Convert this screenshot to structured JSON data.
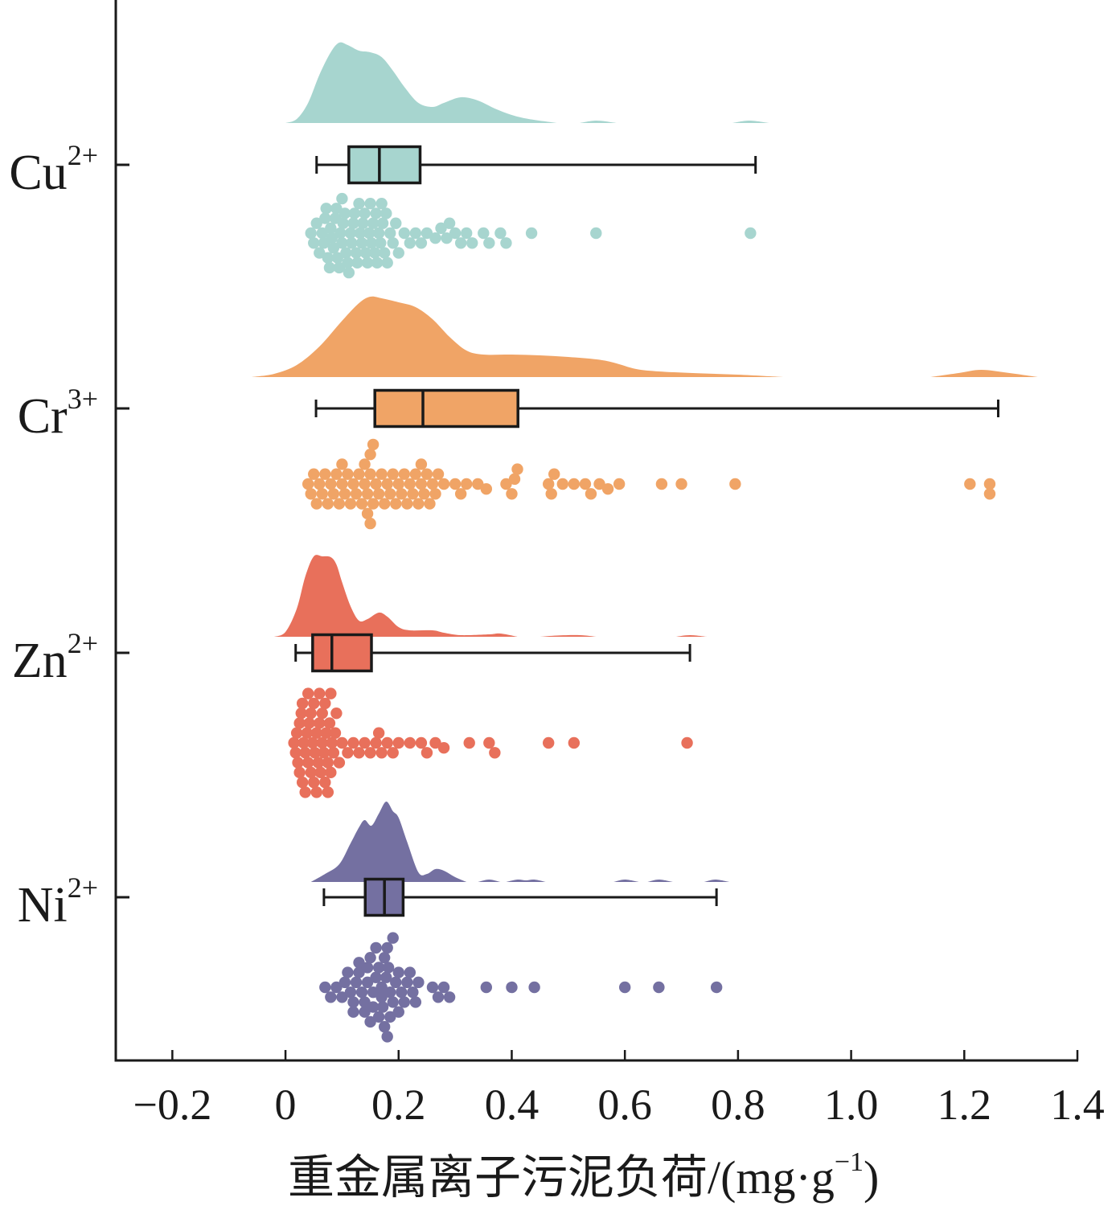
{
  "chart_data": {
    "type": "raincloud",
    "title": "",
    "xlabel": "重金属离子污泥负荷/(mg·g",
    "xlabel_sup": "−1",
    "xlabel_close": ")",
    "ylabel": "",
    "xlim": [
      -0.3,
      1.4
    ],
    "x_ticks": [
      -0.2,
      0,
      0.2,
      0.4,
      0.6,
      0.8,
      1.0,
      1.2,
      1.4
    ],
    "x_tick_labels": [
      "−0.2",
      "0",
      "0.2",
      "0.4",
      "0.6",
      "0.8",
      "1.0",
      "1.2",
      "1.4"
    ],
    "grid": false,
    "legend": "none",
    "series": [
      {
        "name": "Cu2+",
        "label_base": "Cu",
        "label_sup": "2+",
        "color": "#a7d5cf",
        "box": {
          "whisker_low": 0.055,
          "q1": 0.112,
          "median": 0.166,
          "q3": 0.238,
          "whisker_high": 0.831
        },
        "density": [
          [
            0.0,
            0
          ],
          [
            0.02,
            0.05
          ],
          [
            0.04,
            0.25
          ],
          [
            0.06,
            0.6
          ],
          [
            0.08,
            0.88
          ],
          [
            0.095,
            1.0
          ],
          [
            0.11,
            0.97
          ],
          [
            0.13,
            0.9
          ],
          [
            0.15,
            0.88
          ],
          [
            0.17,
            0.82
          ],
          [
            0.19,
            0.65
          ],
          [
            0.21,
            0.45
          ],
          [
            0.235,
            0.25
          ],
          [
            0.26,
            0.2
          ],
          [
            0.28,
            0.25
          ],
          [
            0.31,
            0.32
          ],
          [
            0.34,
            0.28
          ],
          [
            0.37,
            0.18
          ],
          [
            0.4,
            0.1
          ],
          [
            0.43,
            0.05
          ],
          [
            0.48,
            0.0
          ],
          [
            0.52,
            0
          ],
          [
            0.55,
            0.03
          ],
          [
            0.585,
            0
          ],
          [
            0.79,
            0
          ],
          [
            0.82,
            0.03
          ],
          [
            0.855,
            0
          ]
        ],
        "points": [
          0.045,
          0.05,
          0.055,
          0.06,
          0.065,
          0.068,
          0.07,
          0.072,
          0.075,
          0.078,
          0.08,
          0.082,
          0.085,
          0.088,
          0.09,
          0.092,
          0.095,
          0.097,
          0.1,
          0.1,
          0.102,
          0.105,
          0.107,
          0.11,
          0.112,
          0.115,
          0.117,
          0.12,
          0.122,
          0.125,
          0.127,
          0.13,
          0.132,
          0.135,
          0.137,
          0.14,
          0.142,
          0.145,
          0.148,
          0.15,
          0.152,
          0.155,
          0.158,
          0.16,
          0.162,
          0.165,
          0.168,
          0.17,
          0.172,
          0.175,
          0.178,
          0.18,
          0.185,
          0.19,
          0.195,
          0.2,
          0.21,
          0.22,
          0.23,
          0.24,
          0.25,
          0.265,
          0.275,
          0.285,
          0.29,
          0.3,
          0.31,
          0.32,
          0.33,
          0.35,
          0.36,
          0.38,
          0.39,
          0.435,
          0.549,
          0.822
        ]
      },
      {
        "name": "Cr3+",
        "label_base": "Cr",
        "label_sup": "3+",
        "color": "#f0a466",
        "box": {
          "whisker_low": 0.054,
          "q1": 0.158,
          "median": 0.243,
          "q3": 0.411,
          "whisker_high": 1.26
        },
        "density": [
          [
            -0.06,
            0
          ],
          [
            -0.02,
            0.04
          ],
          [
            0.02,
            0.15
          ],
          [
            0.06,
            0.38
          ],
          [
            0.1,
            0.7
          ],
          [
            0.13,
            0.92
          ],
          [
            0.15,
            1.0
          ],
          [
            0.17,
            0.98
          ],
          [
            0.2,
            0.93
          ],
          [
            0.23,
            0.87
          ],
          [
            0.26,
            0.72
          ],
          [
            0.29,
            0.5
          ],
          [
            0.32,
            0.33
          ],
          [
            0.35,
            0.28
          ],
          [
            0.4,
            0.28
          ],
          [
            0.45,
            0.27
          ],
          [
            0.5,
            0.25
          ],
          [
            0.55,
            0.22
          ],
          [
            0.58,
            0.18
          ],
          [
            0.62,
            0.1
          ],
          [
            0.66,
            0.07
          ],
          [
            0.72,
            0.05
          ],
          [
            0.8,
            0.03
          ],
          [
            0.88,
            0
          ],
          [
            1.14,
            0
          ],
          [
            1.19,
            0.05
          ],
          [
            1.23,
            0.09
          ],
          [
            1.28,
            0.05
          ],
          [
            1.33,
            0
          ]
        ],
        "points": [
          0.04,
          0.045,
          0.05,
          0.055,
          0.06,
          0.065,
          0.07,
          0.075,
          0.08,
          0.085,
          0.09,
          0.095,
          0.1,
          0.1,
          0.105,
          0.11,
          0.115,
          0.12,
          0.125,
          0.13,
          0.135,
          0.14,
          0.14,
          0.145,
          0.145,
          0.15,
          0.15,
          0.15,
          0.155,
          0.155,
          0.16,
          0.165,
          0.17,
          0.175,
          0.18,
          0.185,
          0.19,
          0.195,
          0.2,
          0.205,
          0.21,
          0.215,
          0.22,
          0.225,
          0.23,
          0.235,
          0.24,
          0.24,
          0.245,
          0.25,
          0.255,
          0.26,
          0.265,
          0.27,
          0.28,
          0.3,
          0.31,
          0.32,
          0.34,
          0.355,
          0.39,
          0.4,
          0.405,
          0.41,
          0.465,
          0.47,
          0.475,
          0.49,
          0.51,
          0.53,
          0.54,
          0.555,
          0.57,
          0.59,
          0.665,
          0.7,
          0.795,
          1.21,
          1.245,
          1.245
        ]
      },
      {
        "name": "Zn2+",
        "label_base": "Zn",
        "label_sup": "2+",
        "color": "#e8705b",
        "box": {
          "whisker_low": 0.018,
          "q1": 0.048,
          "median": 0.082,
          "q3": 0.152,
          "whisker_high": 0.715
        },
        "density": [
          [
            -0.02,
            0
          ],
          [
            0.0,
            0.06
          ],
          [
            0.02,
            0.35
          ],
          [
            0.035,
            0.75
          ],
          [
            0.05,
            1.0
          ],
          [
            0.065,
            1.0
          ],
          [
            0.08,
            0.99
          ],
          [
            0.09,
            0.9
          ],
          [
            0.1,
            0.68
          ],
          [
            0.115,
            0.38
          ],
          [
            0.13,
            0.2
          ],
          [
            0.145,
            0.22
          ],
          [
            0.165,
            0.3
          ],
          [
            0.18,
            0.25
          ],
          [
            0.2,
            0.12
          ],
          [
            0.22,
            0.08
          ],
          [
            0.26,
            0.08
          ],
          [
            0.28,
            0.05
          ],
          [
            0.31,
            0.02
          ],
          [
            0.36,
            0.03
          ],
          [
            0.38,
            0.04
          ],
          [
            0.41,
            0
          ],
          [
            0.45,
            0
          ],
          [
            0.48,
            0.015
          ],
          [
            0.52,
            0.02
          ],
          [
            0.55,
            0
          ],
          [
            0.69,
            0
          ],
          [
            0.715,
            0.02
          ],
          [
            0.745,
            0
          ]
        ],
        "points": [
          0.015,
          0.018,
          0.02,
          0.022,
          0.025,
          0.025,
          0.028,
          0.03,
          0.03,
          0.032,
          0.035,
          0.035,
          0.038,
          0.04,
          0.04,
          0.042,
          0.045,
          0.045,
          0.048,
          0.05,
          0.05,
          0.052,
          0.055,
          0.055,
          0.058,
          0.06,
          0.06,
          0.062,
          0.065,
          0.065,
          0.068,
          0.07,
          0.07,
          0.072,
          0.075,
          0.075,
          0.078,
          0.08,
          0.08,
          0.082,
          0.085,
          0.088,
          0.09,
          0.095,
          0.1,
          0.11,
          0.12,
          0.13,
          0.14,
          0.15,
          0.16,
          0.165,
          0.17,
          0.18,
          0.19,
          0.2,
          0.22,
          0.24,
          0.25,
          0.265,
          0.28,
          0.325,
          0.36,
          0.37,
          0.465,
          0.51,
          0.71
        ]
      },
      {
        "name": "Ni2+",
        "label_base": "Ni",
        "label_sup": "2+",
        "color": "#7470a1",
        "box": {
          "whisker_low": 0.068,
          "q1": 0.141,
          "median": 0.175,
          "q3": 0.208,
          "whisker_high": 0.762
        },
        "density": [
          [
            0.045,
            0
          ],
          [
            0.07,
            0.1
          ],
          [
            0.095,
            0.22
          ],
          [
            0.115,
            0.48
          ],
          [
            0.13,
            0.68
          ],
          [
            0.14,
            0.77
          ],
          [
            0.152,
            0.7
          ],
          [
            0.165,
            0.85
          ],
          [
            0.178,
            1.0
          ],
          [
            0.19,
            0.88
          ],
          [
            0.2,
            0.8
          ],
          [
            0.215,
            0.5
          ],
          [
            0.235,
            0.12
          ],
          [
            0.25,
            0.1
          ],
          [
            0.265,
            0.16
          ],
          [
            0.28,
            0.14
          ],
          [
            0.3,
            0.06
          ],
          [
            0.32,
            0
          ],
          [
            0.34,
            0
          ],
          [
            0.36,
            0.03
          ],
          [
            0.38,
            0
          ],
          [
            0.39,
            0
          ],
          [
            0.41,
            0.03
          ],
          [
            0.425,
            0.02
          ],
          [
            0.44,
            0.03
          ],
          [
            0.46,
            0
          ],
          [
            0.58,
            0
          ],
          [
            0.6,
            0.03
          ],
          [
            0.625,
            0
          ],
          [
            0.64,
            0
          ],
          [
            0.66,
            0.03
          ],
          [
            0.685,
            0
          ],
          [
            0.74,
            0
          ],
          [
            0.76,
            0.03
          ],
          [
            0.785,
            0
          ]
        ],
        "points": [
          0.07,
          0.08,
          0.09,
          0.1,
          0.105,
          0.11,
          0.115,
          0.12,
          0.12,
          0.125,
          0.13,
          0.13,
          0.135,
          0.14,
          0.14,
          0.145,
          0.145,
          0.15,
          0.15,
          0.155,
          0.155,
          0.16,
          0.16,
          0.165,
          0.165,
          0.17,
          0.17,
          0.172,
          0.175,
          0.175,
          0.178,
          0.18,
          0.18,
          0.182,
          0.185,
          0.185,
          0.19,
          0.19,
          0.195,
          0.2,
          0.2,
          0.205,
          0.21,
          0.215,
          0.22,
          0.225,
          0.23,
          0.235,
          0.26,
          0.27,
          0.28,
          0.29,
          0.355,
          0.4,
          0.44,
          0.6,
          0.66,
          0.762
        ]
      }
    ]
  }
}
